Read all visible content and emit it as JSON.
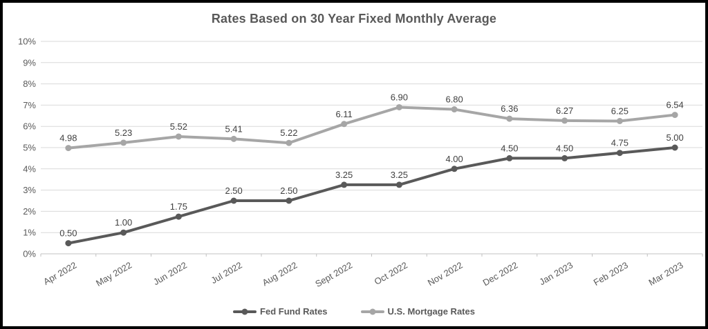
{
  "chart_data": {
    "type": "line",
    "title": "Rates Based on 30 Year Fixed Monthly Average",
    "categories": [
      "Apr 2022",
      "May 2022",
      "Jun 2022",
      "Jul 2022",
      "Aug 2022",
      "Sept 2022",
      "Oct 2022",
      "Nov 2022",
      "Dec 2022",
      "Jan 2023",
      "Feb 2023",
      "Mar 2023"
    ],
    "series": [
      {
        "name": "Fed Fund Rates",
        "color": "#595959",
        "values": [
          0.5,
          1.0,
          1.75,
          2.5,
          2.5,
          3.25,
          3.25,
          4.0,
          4.5,
          4.5,
          4.75,
          5.0
        ],
        "labels": [
          "0.50",
          "1.00",
          "1.75",
          "2.50",
          "2.50",
          "3.25",
          "3.25",
          "4.00",
          "4.50",
          "4.50",
          "4.75",
          "5.00"
        ]
      },
      {
        "name": "U.S. Mortgage Rates",
        "color": "#a6a6a6",
        "values": [
          4.98,
          5.23,
          5.52,
          5.41,
          5.22,
          6.11,
          6.9,
          6.8,
          6.36,
          6.27,
          6.25,
          6.54
        ],
        "labels": [
          "4.98",
          "5.23",
          "5.52",
          "5.41",
          "5.22",
          "6.11",
          "6.90",
          "6.80",
          "6.36",
          "6.27",
          "6.25",
          "6.54"
        ]
      }
    ],
    "y_axis": {
      "min": 0,
      "max": 10,
      "step": 1,
      "tick_labels": [
        "0%",
        "1%",
        "2%",
        "3%",
        "4%",
        "5%",
        "6%",
        "7%",
        "8%",
        "9%",
        "10%"
      ]
    },
    "xlabel": "",
    "ylabel": "",
    "grid": true,
    "legend_position": "bottom"
  },
  "style_colors": {
    "gridline": "#d9d9d9",
    "axis_line": "#c0c0c0",
    "axis_text": "#595959",
    "data_label_text": "#404040",
    "title_text": "#595959",
    "window_border": "#000000",
    "background": "#ffffff"
  }
}
